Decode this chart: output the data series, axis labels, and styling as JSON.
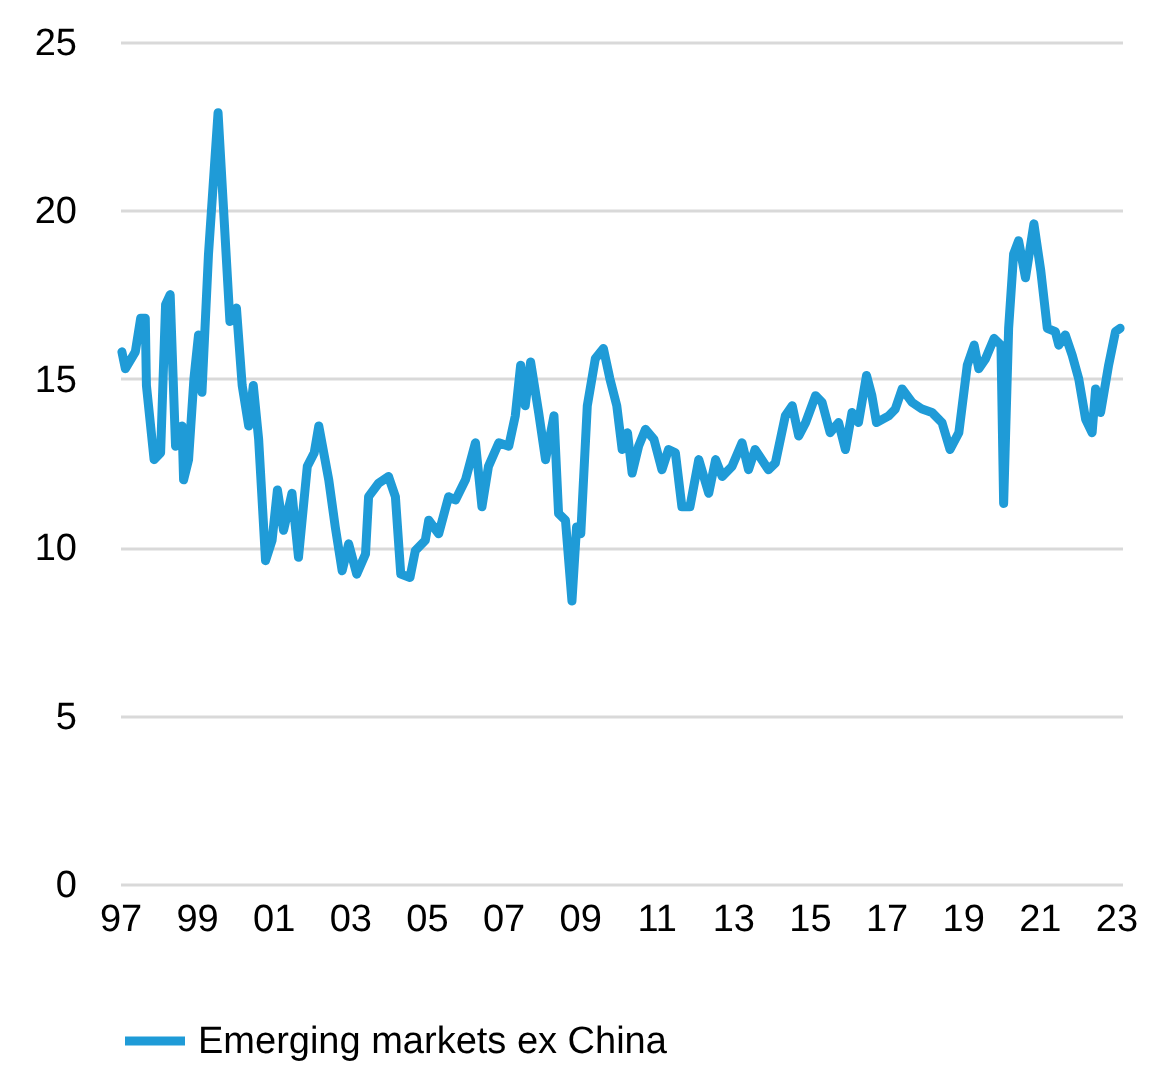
{
  "chart_data": {
    "type": "line",
    "legend": "bottom",
    "grid": "y",
    "line_style": "solid",
    "marker": "none",
    "x": [
      1997.05,
      1997.14,
      1997.4,
      1997.54,
      1997.66,
      1997.69,
      1997.89,
      1998.06,
      1998.19,
      1998.31,
      1998.45,
      1998.62,
      1998.66,
      1998.79,
      1998.93,
      1999.05,
      1999.14,
      1999.31,
      1999.56,
      1999.7,
      1999.87,
      2000.04,
      2000.19,
      2000.36,
      2000.48,
      2000.62,
      2000.8,
      2000.97,
      2001.11,
      2001.27,
      2001.49,
      2001.66,
      2001.89,
      2002.07,
      2002.19,
      2002.45,
      2002.62,
      2002.8,
      2002.97,
      2003.18,
      2003.41,
      2003.49,
      2003.75,
      2004.01,
      2004.19,
      2004.33,
      2004.57,
      2004.71,
      2004.97,
      2005.06,
      2005.32,
      2005.58,
      2005.76,
      2006.02,
      2006.28,
      2006.45,
      2006.62,
      2006.89,
      2007.15,
      2007.32,
      2007.46,
      2007.58,
      2007.72,
      2007.93,
      2008.11,
      2008.33,
      2008.45,
      2008.63,
      2008.8,
      2008.92,
      2009.03,
      2009.2,
      2009.41,
      2009.62,
      2009.79,
      2009.97,
      2010.11,
      2010.25,
      2010.37,
      2010.54,
      2010.72,
      2010.94,
      2011.15,
      2011.32,
      2011.5,
      2011.67,
      2011.88,
      2012.11,
      2012.37,
      2012.55,
      2012.72,
      2012.98,
      2013.24,
      2013.41,
      2013.58,
      2013.93,
      2014.11,
      2014.37,
      2014.55,
      2014.72,
      2014.9,
      2015.16,
      2015.33,
      2015.54,
      2015.76,
      2015.94,
      2016.11,
      2016.28,
      2016.49,
      2016.63,
      2016.75,
      2017.07,
      2017.24,
      2017.42,
      2017.68,
      2017.94,
      2018.2,
      2018.46,
      2018.67,
      2018.9,
      2019.12,
      2019.3,
      2019.42,
      2019.6,
      2019.82,
      2020.0,
      2020.07,
      2020.2,
      2020.33,
      2020.46,
      2020.64,
      2020.86,
      2021.04,
      2021.21,
      2021.42,
      2021.51,
      2021.68,
      2021.86,
      2022.03,
      2022.21,
      2022.38,
      2022.47,
      2022.6,
      2022.81,
      2022.99,
      2023.11
    ],
    "series": [
      {
        "name": "Emerging markets ex China",
        "color": "#1f9bd7",
        "values": [
          15.8,
          15.3,
          15.8,
          16.8,
          16.8,
          14.8,
          12.6,
          12.8,
          17.2,
          17.5,
          13.0,
          13.6,
          12.0,
          12.6,
          15.0,
          16.3,
          14.6,
          18.7,
          22.9,
          20.1,
          16.7,
          17.1,
          14.8,
          13.6,
          14.8,
          13.2,
          9.6,
          10.2,
          11.7,
          10.5,
          11.6,
          9.7,
          12.4,
          12.8,
          13.6,
          12.0,
          10.6,
          9.3,
          10.1,
          9.2,
          9.8,
          11.5,
          11.9,
          12.1,
          11.5,
          9.2,
          9.1,
          9.9,
          10.2,
          10.8,
          10.4,
          11.5,
          11.4,
          12.0,
          13.1,
          11.2,
          12.4,
          13.1,
          13.0,
          13.9,
          15.4,
          14.2,
          15.5,
          14.0,
          12.6,
          13.9,
          11.0,
          10.8,
          8.4,
          10.6,
          10.4,
          14.2,
          15.6,
          15.9,
          15.0,
          14.2,
          12.9,
          13.4,
          12.2,
          13.0,
          13.5,
          13.2,
          12.3,
          12.9,
          12.8,
          11.2,
          11.2,
          12.6,
          11.6,
          12.6,
          12.1,
          12.4,
          13.1,
          12.3,
          12.9,
          12.3,
          12.5,
          13.9,
          14.2,
          13.3,
          13.7,
          14.5,
          14.3,
          13.4,
          13.7,
          12.9,
          14.0,
          13.7,
          15.1,
          14.5,
          13.7,
          13.9,
          14.1,
          14.7,
          14.3,
          14.1,
          14.0,
          13.7,
          12.9,
          13.4,
          15.4,
          16.0,
          15.3,
          15.6,
          16.2,
          16.0,
          11.3,
          16.5,
          18.7,
          19.1,
          18.0,
          19.6,
          18.2,
          16.5,
          16.4,
          16.0,
          16.3,
          15.7,
          15.0,
          13.8,
          13.4,
          14.7,
          14.0,
          15.4,
          16.4,
          16.5
        ]
      }
    ],
    "xlim": [
      1997,
      2023.16
    ],
    "xticks": [
      {
        "value": 1997,
        "label": "97"
      },
      {
        "value": 1999,
        "label": "99"
      },
      {
        "value": 2001,
        "label": "01"
      },
      {
        "value": 2003,
        "label": "03"
      },
      {
        "value": 2005,
        "label": "05"
      },
      {
        "value": 2007,
        "label": "07"
      },
      {
        "value": 2009,
        "label": "09"
      },
      {
        "value": 2011,
        "label": "11"
      },
      {
        "value": 2013,
        "label": "13"
      },
      {
        "value": 2015,
        "label": "15"
      },
      {
        "value": 2017,
        "label": "17"
      },
      {
        "value": 2019,
        "label": "19"
      },
      {
        "value": 2021,
        "label": "21"
      },
      {
        "value": 2023,
        "label": "23"
      }
    ],
    "ylim": [
      0,
      25
    ],
    "yticks": [
      0,
      5,
      10,
      15,
      20,
      25
    ]
  }
}
